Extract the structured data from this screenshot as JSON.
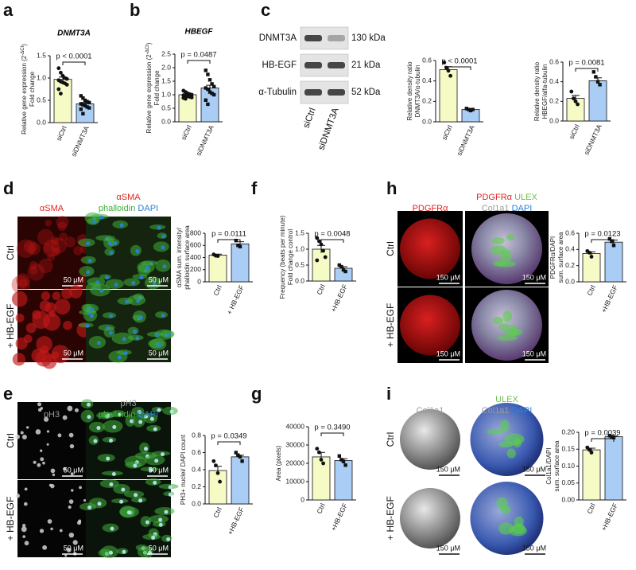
{
  "panel_labels": [
    "a",
    "b",
    "c",
    "d",
    "e",
    "f",
    "g",
    "h",
    "i"
  ],
  "chart_data": [
    {
      "type": "bar",
      "title": "DNMT3A",
      "ylabel": [
        [
          {
            "text": "Relative gene expression (2"
          },
          {
            "text": "-ΔCt",
            "sup": true
          },
          {
            "text": ")"
          }
        ],
        [
          {
            "text": "Fold change"
          }
        ]
      ],
      "categories": [
        "siCtrl",
        "siDNMT3A"
      ],
      "values": [
        0.97,
        0.42
      ],
      "errors": [
        0.05,
        0.03
      ],
      "colors": [
        "#f6fbc6",
        "#a9cdf4"
      ],
      "points": [
        [
          1.22,
          1.12,
          1.05,
          1.0,
          0.98,
          0.95,
          0.92,
          0.9,
          0.88,
          0.85,
          0.75,
          0.65
        ],
        [
          0.6,
          0.55,
          0.5,
          0.47,
          0.45,
          0.42,
          0.4,
          0.38,
          0.35,
          0.33,
          0.3,
          0.2
        ]
      ],
      "annotation": "p < 0.0001",
      "ylim": [
        0,
        1.5
      ],
      "yticks": [
        {
          "value": 0,
          "label": "0.0"
        },
        0.5,
        {
          "value": 1,
          "label": "1.0"
        },
        1.5
      ]
    },
    {
      "type": "bar",
      "title": "HBEGF",
      "ylabel": [
        [
          {
            "text": "Relative gene expression (2"
          },
          {
            "text": "-ΔCt",
            "sup": true
          },
          {
            "text": ")"
          }
        ],
        [
          {
            "text": "Fold change"
          }
        ]
      ],
      "categories": [
        "siCtrl",
        "siDNMT3A"
      ],
      "values": [
        1.0,
        1.25
      ],
      "errors": [
        0.03,
        0.1
      ],
      "colors": [
        "#f6fbc6",
        "#a9cdf4"
      ],
      "points": [
        [
          1.15,
          1.1,
          1.05,
          1.02,
          1.0,
          0.98,
          0.97,
          0.95,
          0.92,
          0.9,
          0.88,
          0.85
        ],
        [
          1.9,
          1.75,
          1.55,
          1.4,
          1.3,
          1.25,
          1.2,
          1.1,
          1.05,
          1.0,
          0.8,
          0.65
        ]
      ],
      "annotation": "p = 0.0487",
      "ylim": [
        0,
        2.5
      ],
      "yticks": [
        {
          "value": 0,
          "label": "0.0"
        },
        0.5,
        {
          "value": 1,
          "label": "1.0"
        },
        1.5,
        {
          "value": 2,
          "label": "2.0"
        },
        2.5
      ]
    },
    {
      "type": "bar",
      "ylabel": [
        [
          {
            "text": "Relative density ratio"
          }
        ],
        [
          {
            "text": "DNMT3A/α-tubulin"
          }
        ]
      ],
      "categories": [
        "siCtrl",
        "siDNMT3A"
      ],
      "values": [
        0.51,
        0.12
      ],
      "errors": [
        0.03,
        0.01
      ],
      "colors": [
        "#f6fbc6",
        "#a9cdf4"
      ],
      "points": [
        [
          0.58,
          0.53,
          0.5,
          0.45
        ],
        [
          0.13,
          0.12,
          0.11,
          0.12
        ]
      ],
      "annotation": "p < 0.0001",
      "ylim": [
        0,
        0.6
      ],
      "yticks": [
        {
          "value": 0,
          "label": "0.0"
        },
        0.2,
        0.4,
        0.6
      ]
    },
    {
      "type": "bar",
      "ylabel": [
        [
          {
            "text": "Relative density ratio"
          }
        ],
        [
          {
            "text": "HBEGF/alfa-tubulin"
          }
        ]
      ],
      "categories": [
        "siCtrl",
        "siDNMT3A"
      ],
      "values": [
        0.23,
        0.41
      ],
      "errors": [
        0.03,
        0.03
      ],
      "colors": [
        "#f6fbc6",
        "#a9cdf4"
      ],
      "points": [
        [
          0.3,
          0.23,
          0.2,
          0.17
        ],
        [
          0.5,
          0.45,
          0.4,
          0.37
        ]
      ],
      "annotation": "p = 0.0081",
      "ylim": [
        0,
        0.6
      ],
      "yticks": [
        {
          "value": 0,
          "label": "0.0"
        },
        0.2,
        0.4,
        0.6
      ]
    },
    {
      "type": "bar",
      "ylabel": [
        [
          {
            "text": "αSMA sum. intensity/"
          }
        ],
        [
          {
            "text": "phalloidin surface area"
          }
        ]
      ],
      "categories": [
        "Ctrl",
        "+ HB-EGF"
      ],
      "values": [
        440,
        625
      ],
      "errors": [
        15,
        35
      ],
      "colors": [
        "#f6fbc6",
        "#a9cdf4"
      ],
      "points": [
        [
          450,
          430,
          425
        ],
        [
          680,
          600,
          580
        ]
      ],
      "annotation": "p = 0.0111",
      "ylim": [
        0,
        800
      ],
      "yticks": [
        0,
        200,
        400,
        600,
        800
      ]
    },
    {
      "type": "bar",
      "ylabel": [
        [
          {
            "text": "Frequency (beats per minute)"
          }
        ],
        [
          {
            "text": "Fold change control"
          }
        ]
      ],
      "categories": [
        "Ctrl",
        "+HB-EGF"
      ],
      "values": [
        1.0,
        0.4
      ],
      "errors": [
        0.12,
        0.05
      ],
      "colors": [
        "#f6fbc6",
        "#a9cdf4"
      ],
      "points": [
        [
          1.35,
          1.25,
          1.15,
          0.95,
          0.75,
          0.65
        ],
        [
          0.5,
          0.45,
          0.35,
          0.3
        ]
      ],
      "annotation": "p = 0.0048",
      "ylim": [
        0,
        1.5
      ],
      "yticks": [
        {
          "value": 0,
          "label": "0.0"
        },
        0.5,
        {
          "value": 1,
          "label": "1.0"
        },
        1.5
      ]
    },
    {
      "type": "bar",
      "ylabel": [
        [
          {
            "text": "PDGFRα/DAPI"
          }
        ],
        [
          {
            "text": "sum. surface area"
          }
        ]
      ],
      "categories": [
        "Ctrl",
        "+HB-EGF"
      ],
      "values": [
        0.35,
        0.49
      ],
      "errors": [
        0.02,
        0.025
      ],
      "colors": [
        "#f6fbc6",
        "#a9cdf4"
      ],
      "points": [
        [
          0.38,
          0.36,
          0.31
        ],
        [
          0.53,
          0.5,
          0.45
        ]
      ],
      "annotation": "p = 0.0123",
      "ylim": [
        0,
        0.6
      ],
      "yticks": [
        {
          "value": 0,
          "label": "0.0"
        },
        0.2,
        0.4,
        0.6
      ]
    },
    {
      "type": "bar",
      "ylabel": [
        [
          {
            "text": "PH3+ nuclei/ DAPI count"
          }
        ]
      ],
      "categories": [
        "Ctrl",
        "+HB-EGF"
      ],
      "values": [
        0.39,
        0.55
      ],
      "errors": [
        0.05,
        0.02
      ],
      "colors": [
        "#f6fbc6",
        "#a9cdf4"
      ],
      "points": [
        [
          0.5,
          0.45,
          0.36,
          0.26
        ],
        [
          0.6,
          0.57,
          0.55,
          0.5
        ]
      ],
      "annotation": "p = 0.0349",
      "ylim": [
        0,
        0.8
      ],
      "yticks": [
        {
          "value": 0,
          "label": "0.0"
        },
        0.2,
        0.4,
        0.6,
        0.8
      ]
    },
    {
      "type": "bar",
      "ylabel": [
        [
          {
            "text": "Area (pixels)"
          }
        ]
      ],
      "categories": [
        "Ctrl",
        "+HB-EGF"
      ],
      "values": [
        23500,
        21500
      ],
      "errors": [
        2500,
        1000
      ],
      "colors": [
        "#f6fbc6",
        "#a9cdf4"
      ],
      "points": [
        [
          28000,
          26000,
          22000,
          20000
        ],
        [
          24000,
          22000,
          21000,
          19000
        ]
      ],
      "annotation": "p = 0.3490",
      "ylim": [
        0,
        40000
      ],
      "yticks": [
        0,
        10000,
        20000,
        30000,
        40000
      ]
    },
    {
      "type": "bar",
      "ylabel": [
        [
          {
            "text": "Col1a1/DAPI"
          }
        ],
        [
          {
            "text": "sum. surface area"
          }
        ]
      ],
      "categories": [
        "Ctrl",
        "+HB-EGF"
      ],
      "values": [
        0.148,
        0.187
      ],
      "errors": [
        0.005,
        0.002
      ],
      "colors": [
        "#f6fbc6",
        "#a9cdf4"
      ],
      "points": [
        [
          0.155,
          0.148,
          0.14
        ],
        [
          0.19,
          0.187,
          0.184
        ]
      ],
      "annotation": "p = 0.0039",
      "ylim": [
        0,
        0.2
      ],
      "yticks": [
        {
          "value": 0,
          "label": "0.00"
        },
        0.05,
        {
          "value": 0.1,
          "label": "0.10"
        },
        0.15,
        {
          "value": 0.2,
          "label": "0.20"
        }
      ]
    }
  ],
  "blot": {
    "rows": [
      {
        "name": "DNMT3A",
        "size": "130 kDa"
      },
      {
        "name": "HB-EGF",
        "size": "21 kDa"
      },
      {
        "name": "α-Tubulin",
        "size": "52 kDa"
      }
    ],
    "lanes": [
      "siCtrl",
      "siDNMT3A"
    ]
  },
  "images": [
    {
      "headers": [
        [
          [
            {
              "text": "αSMA",
              "color": "#e0261f"
            }
          ]
        ],
        [
          [
            {
              "text": "αSMA",
              "color": "#e0261f"
            }
          ],
          [
            {
              "text": "phalloidin",
              "color": "#3fae3a"
            },
            {
              "text": "DAPI",
              "color": "#2c7fd8"
            }
          ]
        ]
      ],
      "rows": [
        "Ctrl",
        "+ HB-EGF"
      ],
      "scale": "50 μM"
    },
    {
      "headers": [
        [
          [
            {
              "text": "pH3",
              "color": "#9a9a9a"
            }
          ]
        ],
        [
          [
            {
              "text": "pH3",
              "color": "#9a9a9a"
            }
          ],
          [
            {
              "text": "phalloidin",
              "color": "#3fae3a"
            },
            {
              "text": "DAPI",
              "color": "#2c7fd8"
            }
          ]
        ]
      ],
      "rows": [
        "Ctrl",
        "+ HB-EGF"
      ],
      "scale": "50 μM"
    },
    {
      "headers": [
        [
          [
            {
              "text": "PDGFRα",
              "color": "#e0261f"
            }
          ]
        ],
        [
          [
            {
              "text": "PDGFRα",
              "color": "#e0261f"
            },
            {
              "text": "ULEX",
              "color": "#6cc04a"
            }
          ],
          [
            {
              "text": "Col1a1",
              "color": "#9a9a9a"
            },
            {
              "text": "DAPI",
              "color": "#2c7fd8"
            }
          ]
        ]
      ],
      "rows": [
        "Ctrl",
        "+ HB-EGF"
      ],
      "scale": "150 μM"
    },
    {
      "headers": [
        [
          [
            {
              "text": "Col1a1",
              "color": "#9a9a9a"
            }
          ]
        ],
        [
          [
            {
              "text": "ULEX",
              "color": "#6cc04a"
            }
          ],
          [
            {
              "text": "Col1a1",
              "color": "#9a9a9a"
            },
            {
              "text": "DAPI",
              "color": "#2c7fd8"
            }
          ]
        ]
      ],
      "rows": [
        "Ctrl",
        "+ HB-EGF"
      ],
      "scale": "150 μM"
    }
  ]
}
